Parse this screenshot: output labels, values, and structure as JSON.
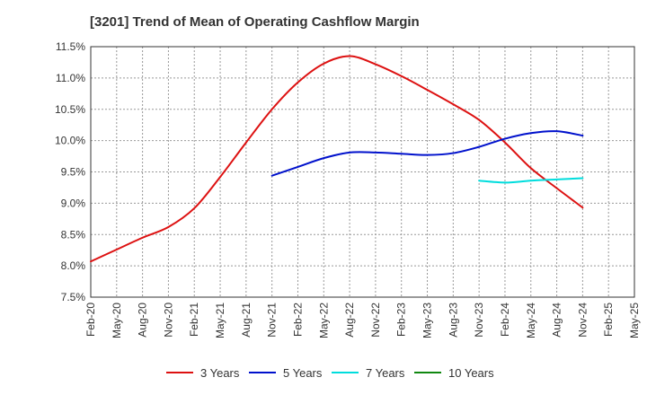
{
  "chart_data": {
    "type": "line",
    "title": "[3201]  Trend of Mean of Operating Cashflow Margin",
    "xlabel": "",
    "ylabel": "",
    "x": [
      "Feb-20",
      "May-20",
      "Aug-20",
      "Nov-20",
      "Feb-21",
      "May-21",
      "Aug-21",
      "Nov-21",
      "Feb-22",
      "May-22",
      "Aug-22",
      "Nov-22",
      "Feb-23",
      "May-23",
      "Aug-23",
      "Nov-23",
      "Feb-24",
      "May-24",
      "Aug-24",
      "Nov-24",
      "Feb-25",
      "May-25"
    ],
    "ylim": [
      7.5,
      11.5
    ],
    "yticks": [
      7.5,
      8.0,
      8.5,
      9.0,
      9.5,
      10.0,
      10.5,
      11.0,
      11.5
    ],
    "ytick_labels": [
      "7.5%",
      "8.0%",
      "8.5%",
      "9.0%",
      "9.5%",
      "10.0%",
      "10.5%",
      "11.0%",
      "11.5%"
    ],
    "grid": true,
    "legend_position": "bottom",
    "series": [
      {
        "name": "3 Years",
        "color": "#dd1111",
        "values": [
          8.07,
          8.26,
          8.45,
          8.62,
          8.92,
          9.42,
          9.97,
          10.5,
          10.93,
          11.23,
          11.35,
          11.22,
          11.03,
          10.81,
          10.58,
          10.33,
          9.97,
          9.56,
          9.24,
          8.93,
          null,
          null
        ]
      },
      {
        "name": "5 Years",
        "color": "#0011cc",
        "values": [
          null,
          null,
          null,
          null,
          null,
          null,
          null,
          9.44,
          9.58,
          9.72,
          9.81,
          9.81,
          9.79,
          9.77,
          9.8,
          9.9,
          10.03,
          10.12,
          10.15,
          10.08,
          null,
          null
        ]
      },
      {
        "name": "7 Years",
        "color": "#00dddd",
        "values": [
          null,
          null,
          null,
          null,
          null,
          null,
          null,
          null,
          null,
          null,
          null,
          null,
          null,
          null,
          null,
          9.36,
          9.33,
          9.36,
          9.38,
          9.4,
          null,
          null
        ]
      },
      {
        "name": "10 Years",
        "color": "#118811",
        "values": [
          null,
          null,
          null,
          null,
          null,
          null,
          null,
          null,
          null,
          null,
          null,
          null,
          null,
          null,
          null,
          null,
          null,
          null,
          null,
          null,
          null,
          null
        ]
      }
    ]
  }
}
